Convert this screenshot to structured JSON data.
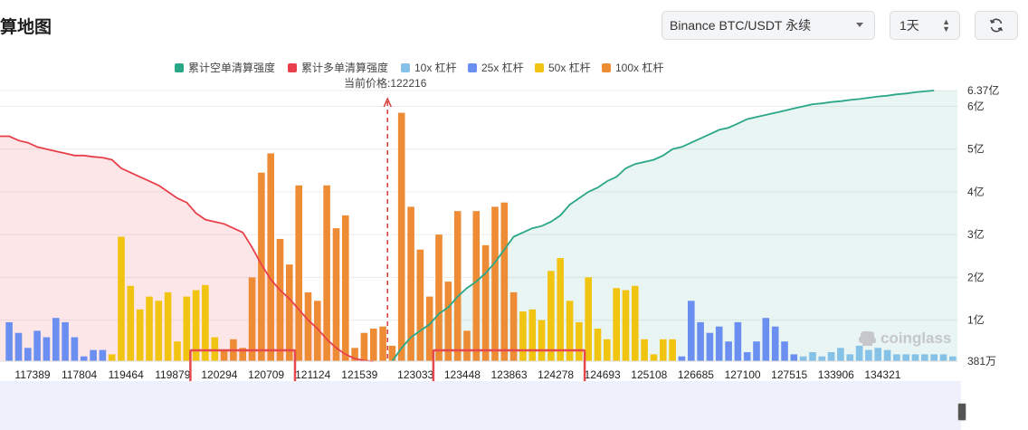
{
  "header": {
    "title": "算地图",
    "exchange_select": "Binance BTC/USDT 永续",
    "period_select": "1天",
    "refresh_icon": "refresh-icon"
  },
  "price_marker": {
    "label": "当前价格:122216"
  },
  "watermark": "coinglass",
  "colors": {
    "short_cum": "#2aa788",
    "long_cum": "#e8404a",
    "lev10": "#86c1e7",
    "lev25": "#6b8ff0",
    "lev50": "#f2c412",
    "lev100": "#ee8c35",
    "highlight": "#e5484d"
  },
  "chart_data": {
    "type": "bar",
    "legend": [
      {
        "name": "累计空单清算强度",
        "color": "#2aa788"
      },
      {
        "name": "累计多单清算强度",
        "color": "#e8404a"
      },
      {
        "name": "10x 杠杆",
        "color": "#86c1e7"
      },
      {
        "name": "25x 杠杆",
        "color": "#6b8ff0"
      },
      {
        "name": "50x 杠杆",
        "color": "#f2c412"
      },
      {
        "name": "100x 杠杆",
        "color": "#ee8c35"
      }
    ],
    "y_ticks": [
      "381万",
      "1亿",
      "2亿",
      "3亿",
      "4亿",
      "5亿",
      "6亿",
      "6.37亿"
    ],
    "y_tick_values": [
      0.0381,
      1,
      2,
      3,
      4,
      5,
      6,
      6.37
    ],
    "y_unit": "亿",
    "ylim": [
      0.0381,
      6.37
    ],
    "x_ticks": [
      "117389",
      "117804",
      "119464",
      "119879",
      "120294",
      "120709",
      "121124",
      "121539",
      "123033",
      "123448",
      "123863",
      "124278",
      "124693",
      "125108",
      "126685",
      "127100",
      "127515",
      "133906",
      "134321"
    ],
    "current_price": 122216,
    "bars": [
      {
        "v": 0.95,
        "lev": "25x"
      },
      {
        "v": 0.7,
        "lev": "25x"
      },
      {
        "v": 0.35,
        "lev": "25x"
      },
      {
        "v": 0.75,
        "lev": "25x"
      },
      {
        "v": 0.6,
        "lev": "25x"
      },
      {
        "v": 1.05,
        "lev": "25x"
      },
      {
        "v": 0.95,
        "lev": "25x"
      },
      {
        "v": 0.6,
        "lev": "25x"
      },
      {
        "v": 0.15,
        "lev": "25x"
      },
      {
        "v": 0.3,
        "lev": "25x"
      },
      {
        "v": 0.3,
        "lev": "25x"
      },
      {
        "v": 0.2,
        "lev": "50x"
      },
      {
        "v": 2.95,
        "lev": "50x"
      },
      {
        "v": 1.8,
        "lev": "50x"
      },
      {
        "v": 1.25,
        "lev": "50x"
      },
      {
        "v": 1.55,
        "lev": "50x"
      },
      {
        "v": 1.45,
        "lev": "50x"
      },
      {
        "v": 1.65,
        "lev": "50x"
      },
      {
        "v": 0.5,
        "lev": "50x"
      },
      {
        "v": 1.55,
        "lev": "50x"
      },
      {
        "v": 1.7,
        "lev": "50x"
      },
      {
        "v": 1.82,
        "lev": "50x"
      },
      {
        "v": 0.6,
        "lev": "50x"
      },
      {
        "v": 0.3,
        "lev": "100x"
      },
      {
        "v": 0.55,
        "lev": "100x"
      },
      {
        "v": 0.35,
        "lev": "100x"
      },
      {
        "v": 2.0,
        "lev": "100x"
      },
      {
        "v": 4.45,
        "lev": "100x"
      },
      {
        "v": 4.9,
        "lev": "100x"
      },
      {
        "v": 2.9,
        "lev": "100x"
      },
      {
        "v": 2.3,
        "lev": "100x"
      },
      {
        "v": 4.15,
        "lev": "100x"
      },
      {
        "v": 1.65,
        "lev": "100x"
      },
      {
        "v": 1.45,
        "lev": "100x"
      },
      {
        "v": 4.15,
        "lev": "100x"
      },
      {
        "v": 3.15,
        "lev": "100x"
      },
      {
        "v": 3.45,
        "lev": "100x"
      },
      {
        "v": 0.35,
        "lev": "100x"
      },
      {
        "v": 0.7,
        "lev": "100x"
      },
      {
        "v": 0.8,
        "lev": "100x"
      },
      {
        "v": 0.85,
        "lev": "100x"
      },
      {
        "v": 0.4,
        "lev": "100x",
        "side": "short"
      },
      {
        "v": 5.85,
        "lev": "100x"
      },
      {
        "v": 3.65,
        "lev": "100x"
      },
      {
        "v": 2.65,
        "lev": "100x"
      },
      {
        "v": 1.55,
        "lev": "100x"
      },
      {
        "v": 3.0,
        "lev": "100x"
      },
      {
        "v": 1.9,
        "lev": "100x"
      },
      {
        "v": 3.55,
        "lev": "100x"
      },
      {
        "v": 0.75,
        "lev": "100x"
      },
      {
        "v": 3.55,
        "lev": "100x"
      },
      {
        "v": 2.75,
        "lev": "100x"
      },
      {
        "v": 3.65,
        "lev": "100x"
      },
      {
        "v": 3.75,
        "lev": "100x"
      },
      {
        "v": 1.65,
        "lev": "100x"
      },
      {
        "v": 1.2,
        "lev": "50x"
      },
      {
        "v": 1.25,
        "lev": "50x"
      },
      {
        "v": 1.0,
        "lev": "50x"
      },
      {
        "v": 2.15,
        "lev": "50x"
      },
      {
        "v": 2.45,
        "lev": "50x"
      },
      {
        "v": 1.45,
        "lev": "50x"
      },
      {
        "v": 0.95,
        "lev": "50x"
      },
      {
        "v": 2.0,
        "lev": "50x"
      },
      {
        "v": 0.8,
        "lev": "50x"
      },
      {
        "v": 0.55,
        "lev": "50x"
      },
      {
        "v": 1.75,
        "lev": "50x"
      },
      {
        "v": 1.7,
        "lev": "50x"
      },
      {
        "v": 1.8,
        "lev": "50x"
      },
      {
        "v": 0.55,
        "lev": "50x"
      },
      {
        "v": 0.2,
        "lev": "50x"
      },
      {
        "v": 0.55,
        "lev": "50x"
      },
      {
        "v": 0.55,
        "lev": "50x"
      },
      {
        "v": 0.15,
        "lev": "25x"
      },
      {
        "v": 1.45,
        "lev": "25x"
      },
      {
        "v": 0.95,
        "lev": "25x"
      },
      {
        "v": 0.7,
        "lev": "25x"
      },
      {
        "v": 0.85,
        "lev": "25x"
      },
      {
        "v": 0.5,
        "lev": "25x"
      },
      {
        "v": 0.95,
        "lev": "25x"
      },
      {
        "v": 0.25,
        "lev": "25x"
      },
      {
        "v": 0.5,
        "lev": "25x"
      },
      {
        "v": 1.05,
        "lev": "25x"
      },
      {
        "v": 0.85,
        "lev": "25x"
      },
      {
        "v": 0.5,
        "lev": "25x"
      },
      {
        "v": 0.2,
        "lev": "25x"
      },
      {
        "v": 0.15,
        "lev": "10x"
      },
      {
        "v": 0.25,
        "lev": "10x"
      },
      {
        "v": 0.15,
        "lev": "10x"
      },
      {
        "v": 0.25,
        "lev": "10x"
      },
      {
        "v": 0.35,
        "lev": "10x"
      },
      {
        "v": 0.2,
        "lev": "10x"
      },
      {
        "v": 0.4,
        "lev": "10x"
      },
      {
        "v": 0.3,
        "lev": "10x"
      },
      {
        "v": 0.35,
        "lev": "10x"
      },
      {
        "v": 0.3,
        "lev": "10x"
      },
      {
        "v": 0.2,
        "lev": "10x"
      },
      {
        "v": 0.2,
        "lev": "10x"
      },
      {
        "v": 0.2,
        "lev": "10x"
      },
      {
        "v": 0.2,
        "lev": "10x"
      },
      {
        "v": 0.2,
        "lev": "10x"
      },
      {
        "v": 0.2,
        "lev": "10x"
      },
      {
        "v": 0.15,
        "lev": "10x"
      }
    ],
    "long_cumulative": [
      [
        0,
        5.3
      ],
      [
        1,
        5.2
      ],
      [
        2,
        5.15
      ],
      [
        3,
        5.05
      ],
      [
        4,
        5.0
      ],
      [
        5,
        4.95
      ],
      [
        6,
        4.9
      ],
      [
        7,
        4.85
      ],
      [
        8,
        4.85
      ],
      [
        9,
        4.82
      ],
      [
        10,
        4.8
      ],
      [
        11,
        4.75
      ],
      [
        12,
        4.55
      ],
      [
        13,
        4.45
      ],
      [
        14,
        4.35
      ],
      [
        15,
        4.25
      ],
      [
        16,
        4.15
      ],
      [
        17,
        4.0
      ],
      [
        18,
        3.85
      ],
      [
        19,
        3.75
      ],
      [
        20,
        3.5
      ],
      [
        21,
        3.35
      ],
      [
        22,
        3.3
      ],
      [
        23,
        3.25
      ],
      [
        24,
        3.15
      ],
      [
        25,
        3.05
      ],
      [
        26,
        2.7
      ],
      [
        27,
        2.3
      ],
      [
        28,
        1.95
      ],
      [
        29,
        1.7
      ],
      [
        30,
        1.5
      ],
      [
        31,
        1.25
      ],
      [
        32,
        1.0
      ],
      [
        33,
        0.8
      ],
      [
        34,
        0.55
      ],
      [
        35,
        0.35
      ],
      [
        36,
        0.2
      ],
      [
        37,
        0.1
      ],
      [
        38,
        0.05
      ],
      [
        39,
        0.0
      ]
    ],
    "short_cumulative": [
      [
        41,
        0.0
      ],
      [
        42,
        0.35
      ],
      [
        43,
        0.6
      ],
      [
        44,
        0.75
      ],
      [
        45,
        0.9
      ],
      [
        46,
        1.15
      ],
      [
        47,
        1.3
      ],
      [
        48,
        1.55
      ],
      [
        49,
        1.75
      ],
      [
        50,
        1.9
      ],
      [
        51,
        2.1
      ],
      [
        52,
        2.35
      ],
      [
        53,
        2.65
      ],
      [
        54,
        2.95
      ],
      [
        55,
        3.05
      ],
      [
        56,
        3.15
      ],
      [
        57,
        3.2
      ],
      [
        58,
        3.3
      ],
      [
        59,
        3.45
      ],
      [
        60,
        3.7
      ],
      [
        61,
        3.85
      ],
      [
        62,
        4.0
      ],
      [
        63,
        4.1
      ],
      [
        64,
        4.25
      ],
      [
        65,
        4.35
      ],
      [
        66,
        4.55
      ],
      [
        67,
        4.65
      ],
      [
        68,
        4.7
      ],
      [
        69,
        4.75
      ],
      [
        70,
        4.85
      ],
      [
        71,
        5.0
      ],
      [
        72,
        5.05
      ],
      [
        73,
        5.15
      ],
      [
        74,
        5.25
      ],
      [
        75,
        5.35
      ],
      [
        76,
        5.45
      ],
      [
        77,
        5.5
      ],
      [
        78,
        5.6
      ],
      [
        79,
        5.7
      ],
      [
        80,
        5.75
      ],
      [
        81,
        5.8
      ],
      [
        82,
        5.85
      ],
      [
        83,
        5.9
      ],
      [
        84,
        5.95
      ],
      [
        85,
        6.0
      ],
      [
        86,
        6.05
      ],
      [
        87,
        6.07
      ],
      [
        88,
        6.1
      ],
      [
        89,
        6.12
      ],
      [
        90,
        6.15
      ],
      [
        91,
        6.17
      ],
      [
        92,
        6.2
      ],
      [
        93,
        6.23
      ],
      [
        94,
        6.25
      ],
      [
        95,
        6.28
      ],
      [
        96,
        6.3
      ],
      [
        97,
        6.33
      ],
      [
        98,
        6.35
      ],
      [
        99,
        6.37
      ]
    ],
    "highlight_groups": [
      [
        "120294",
        "120709"
      ],
      [
        "123448",
        "123863",
        "124278"
      ]
    ],
    "grid": true
  }
}
